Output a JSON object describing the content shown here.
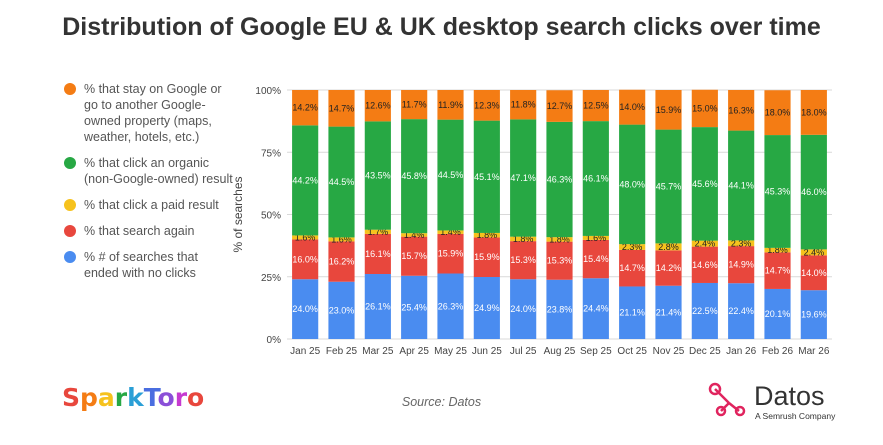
{
  "title": "Distribution of Google EU & UK desktop search clicks over time",
  "legend": [
    {
      "label": "% that stay on Google or go to another Google-owned property (maps, weather, hotels, etc.)",
      "color": "#f47c14"
    },
    {
      "label": "% that click an organic (non-Google-owned) result",
      "color": "#27a844"
    },
    {
      "label": "% that click a paid result",
      "color": "#f6c21d"
    },
    {
      "label": "% that search again",
      "color": "#e8473d"
    },
    {
      "label": "% # of searches that ended with no clicks",
      "color": "#4a8cf0"
    }
  ],
  "chart_data": {
    "type": "bar",
    "stacked": true,
    "categories": [
      "Jan 25",
      "Feb 25",
      "Mar 25",
      "Apr 25",
      "May 25",
      "Jun 25",
      "Jul 25",
      "Aug 25",
      "Sep 25",
      "Oct 25",
      "Nov 25",
      "Dec 25",
      "Jan 26",
      "Feb 26",
      "Mar 26"
    ],
    "ylabel": "% of searches",
    "ylim": [
      0,
      100
    ],
    "yticks": [
      "0%",
      "25%",
      "50%",
      "75%",
      "100%"
    ],
    "grid": true,
    "series": [
      {
        "name": "% # of searches that ended with no clicks",
        "color": "#4a8cf0",
        "values": [
          24.0,
          23.0,
          26.1,
          25.4,
          26.3,
          24.9,
          24.0,
          23.8,
          24.4,
          21.1,
          21.4,
          22.5,
          22.4,
          20.1,
          19.6
        ],
        "labels": [
          "24.0%",
          "23.0%",
          "26.1%",
          "25.4%",
          "26.3%",
          "24.9%",
          "24.0%",
          "23.8%",
          "24.4%",
          "21.1%",
          "21.4%",
          "22.5%",
          "22.4%",
          "20.1%",
          "19.6%"
        ]
      },
      {
        "name": "% that search again",
        "color": "#e8473d",
        "values": [
          16.0,
          16.2,
          16.1,
          15.7,
          15.9,
          15.9,
          15.3,
          15.3,
          15.4,
          14.7,
          14.2,
          14.6,
          14.9,
          14.7,
          14.0
        ],
        "labels": [
          "16.0%",
          "16.2%",
          "16.1%",
          "15.7%",
          "15.9%",
          "15.9%",
          "15.3%",
          "15.3%",
          "15.4%",
          "14.7%",
          "14.2%",
          "14.6%",
          "14.9%",
          "14.7%",
          "14.0%"
        ]
      },
      {
        "name": "% that click a paid result",
        "color": "#f6c21d",
        "values": [
          1.6,
          1.6,
          1.7,
          1.4,
          1.4,
          1.8,
          1.8,
          1.8,
          1.6,
          2.3,
          2.8,
          2.4,
          2.3,
          1.8,
          2.4
        ],
        "labels": [
          "1.6%",
          "1.6%",
          "1.7%",
          "1.4%",
          "1.4%",
          "1.8%",
          "1.8%",
          "1.8%",
          "1.6%",
          "2.3%",
          "2.8%",
          "2.4%",
          "2.3%",
          "1.8%",
          "2.4%"
        ]
      },
      {
        "name": "% that click an organic (non-Google-owned) result",
        "color": "#27a844",
        "values": [
          44.2,
          44.5,
          43.5,
          45.8,
          44.5,
          45.1,
          47.1,
          46.3,
          46.1,
          48.0,
          45.7,
          45.6,
          44.1,
          45.3,
          46.0
        ],
        "labels": [
          "44.2%",
          "44.5%",
          "43.5%",
          "45.8%",
          "44.5%",
          "45.1%",
          "47.1%",
          "46.3%",
          "46.1%",
          "48.0%",
          "45.7%",
          "45.6%",
          "44.1%",
          "45.3%",
          "46.0%"
        ]
      },
      {
        "name": "% that stay on Google or go to another Google-owned property (maps, weather, hotels, etc.)",
        "color": "#f47c14",
        "values": [
          14.2,
          14.7,
          12.6,
          11.7,
          11.9,
          12.3,
          11.8,
          12.7,
          12.5,
          14.0,
          15.9,
          15.0,
          16.3,
          18.0,
          18.0
        ],
        "labels": [
          "14.2%",
          "14.7%",
          "12.6%",
          "11.7%",
          "11.9%",
          "12.3%",
          "11.8%",
          "12.7%",
          "12.5%",
          "14.0%",
          "15.9%",
          "15.0%",
          "16.3%",
          "18.0%",
          "18.0%"
        ]
      }
    ]
  },
  "footer": {
    "brand_left": "SparkToro",
    "brand_left_colors": [
      "#e8473d",
      "#f47c14",
      "#f6c21d",
      "#27a844",
      "#2a9fd6",
      "#4a6ee0",
      "#8a4fd8",
      "#c63ad0",
      "#e8473d"
    ],
    "source": "Source: Datos",
    "brand_right": "Datos",
    "brand_right_sub": "A Semrush Company",
    "brand_right_color": "#e0245e"
  }
}
